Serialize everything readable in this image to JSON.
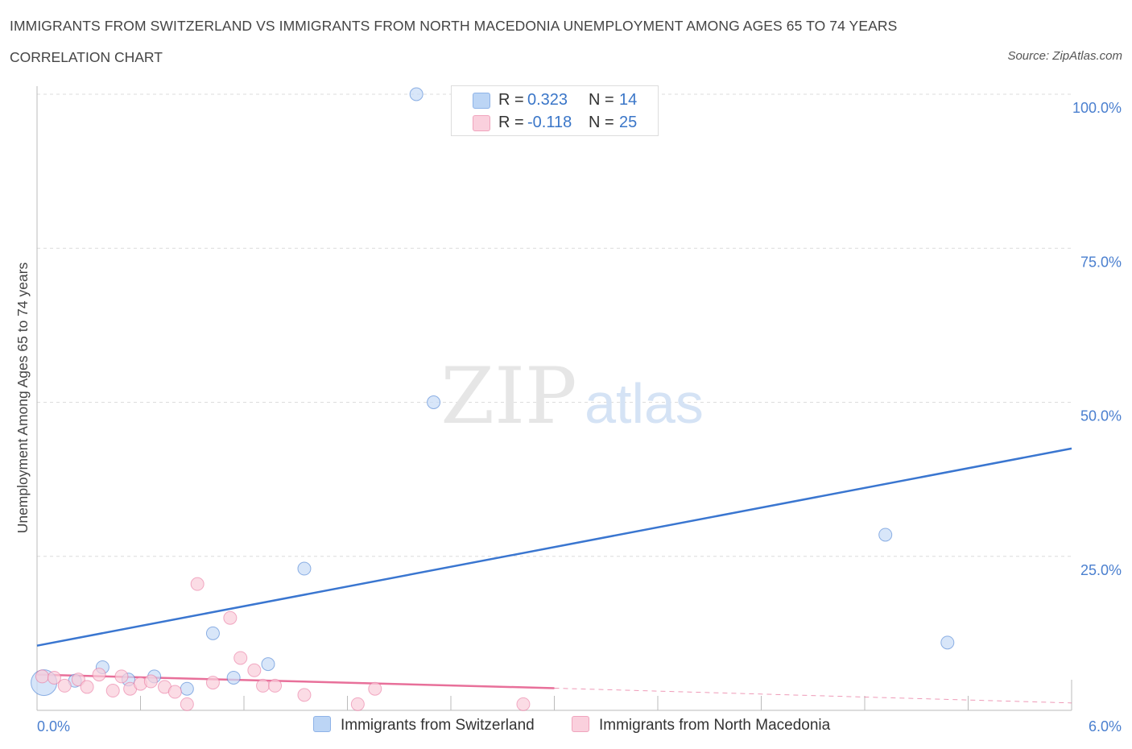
{
  "header": {
    "title": "IMMIGRANTS FROM SWITZERLAND VS IMMIGRANTS FROM NORTH MACEDONIA UNEMPLOYMENT AMONG AGES 65 TO 74 YEARS",
    "subtitle": "CORRELATION CHART",
    "source": "Source: ZipAtlas.com"
  },
  "watermark": {
    "zip": "ZIP",
    "atlas": "atlas"
  },
  "legend": {
    "rows": [
      {
        "r_label": "R =",
        "r_value": "0.323",
        "n_label": "N =",
        "n_value": "14",
        "color": "#a9c8f0"
      },
      {
        "r_label": "R =",
        "r_value": "-0.118",
        "n_label": "N =",
        "n_value": "25",
        "color": "#f7bcd0"
      }
    ]
  },
  "chart_data": {
    "type": "scatter",
    "title": "IMMIGRANTS FROM SWITZERLAND VS IMMIGRANTS FROM NORTH MACEDONIA UNEMPLOYMENT AMONG AGES 65 TO 74 YEARS",
    "xlabel": "",
    "ylabel": "Unemployment Among Ages 65 to 74 years",
    "xlim": [
      0,
      6
    ],
    "ylim": [
      0,
      100
    ],
    "x_tick_labels": [
      "0.0%",
      "6.0%"
    ],
    "y_tick_values": [
      25,
      50,
      75,
      100
    ],
    "y_tick_labels": [
      "25.0%",
      "50.0%",
      "75.0%",
      "100.0%"
    ],
    "grid": true,
    "legend_position": "bottom",
    "series": [
      {
        "name": "Immigrants from Switzerland",
        "color": "#3a76d0",
        "fill": "#c8dcf7",
        "points": [
          {
            "x": 0.04,
            "y": 4.5,
            "big": true
          },
          {
            "x": 0.22,
            "y": 4.8
          },
          {
            "x": 0.38,
            "y": 7.0
          },
          {
            "x": 0.53,
            "y": 5.0
          },
          {
            "x": 0.68,
            "y": 5.5
          },
          {
            "x": 0.87,
            "y": 3.5
          },
          {
            "x": 1.02,
            "y": 12.5
          },
          {
            "x": 1.14,
            "y": 5.3
          },
          {
            "x": 1.34,
            "y": 7.5
          },
          {
            "x": 1.55,
            "y": 23.0
          },
          {
            "x": 2.2,
            "y": 100.0
          },
          {
            "x": 2.3,
            "y": 50.0
          },
          {
            "x": 4.92,
            "y": 28.5
          },
          {
            "x": 5.28,
            "y": 11.0
          }
        ],
        "trend": {
          "x0": 0.0,
          "y0": 10.5,
          "x1": 6.0,
          "y1": 42.5
        }
      },
      {
        "name": "Immigrants from North Macedonia",
        "color": "#e8709a",
        "fill": "#f9cdda",
        "points": [
          {
            "x": 0.03,
            "y": 5.5
          },
          {
            "x": 0.1,
            "y": 5.3
          },
          {
            "x": 0.16,
            "y": 4.0
          },
          {
            "x": 0.24,
            "y": 5.0
          },
          {
            "x": 0.29,
            "y": 3.8
          },
          {
            "x": 0.36,
            "y": 5.8
          },
          {
            "x": 0.44,
            "y": 3.2
          },
          {
            "x": 0.49,
            "y": 5.5
          },
          {
            "x": 0.54,
            "y": 3.5
          },
          {
            "x": 0.6,
            "y": 4.3
          },
          {
            "x": 0.66,
            "y": 4.7
          },
          {
            "x": 0.74,
            "y": 3.8
          },
          {
            "x": 0.8,
            "y": 3.0
          },
          {
            "x": 0.87,
            "y": 1.0
          },
          {
            "x": 0.93,
            "y": 20.5
          },
          {
            "x": 1.02,
            "y": 4.5
          },
          {
            "x": 1.12,
            "y": 15.0
          },
          {
            "x": 1.18,
            "y": 8.5
          },
          {
            "x": 1.26,
            "y": 6.5
          },
          {
            "x": 1.31,
            "y": 4.0
          },
          {
            "x": 1.38,
            "y": 4.0
          },
          {
            "x": 1.55,
            "y": 2.5
          },
          {
            "x": 1.86,
            "y": 1.0
          },
          {
            "x": 1.96,
            "y": 3.5
          },
          {
            "x": 2.82,
            "y": 1.0
          }
        ],
        "trend": {
          "x0": 0.0,
          "y0": 5.8,
          "x1": 3.0,
          "y1": 3.6
        },
        "trend_dashed": {
          "x0": 3.0,
          "y0": 3.6,
          "x1": 6.0,
          "y1": 1.2
        }
      }
    ]
  }
}
